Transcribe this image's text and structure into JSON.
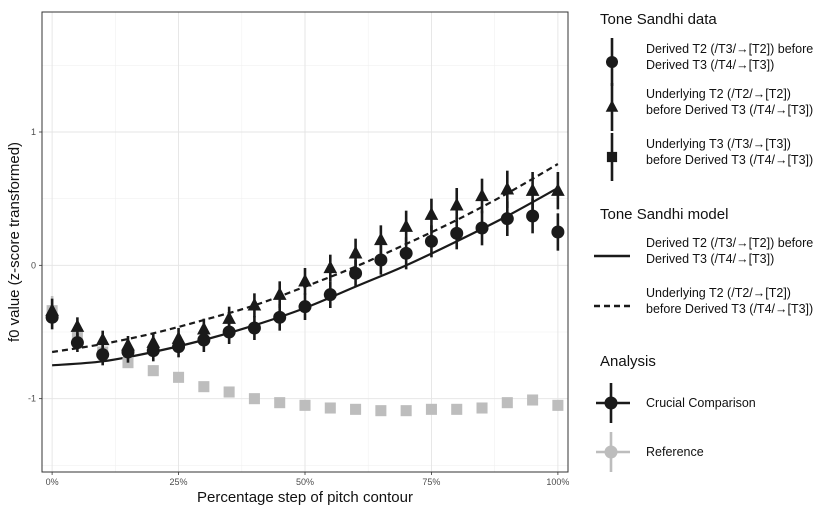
{
  "chart_data": {
    "type": "scatter",
    "xlabel": "Percentage step of pitch contour",
    "ylabel": "f0 value (z-score transformed)",
    "xlim": [
      -2,
      102
    ],
    "ylim": [
      -1.55,
      1.9
    ],
    "x_ticks": [
      0,
      25,
      50,
      75,
      100
    ],
    "x_tick_labels": [
      "0%",
      "25%",
      "50%",
      "75%",
      "100%"
    ],
    "y_ticks": [
      -1,
      0,
      1
    ],
    "y_tick_labels": [
      "-1",
      "0",
      "1"
    ],
    "grid": true,
    "x": [
      0,
      5,
      10,
      15,
      20,
      25,
      30,
      35,
      40,
      45,
      50,
      55,
      60,
      65,
      70,
      75,
      80,
      85,
      90,
      95,
      100
    ],
    "series": [
      {
        "name": "Derived T2 (/T3/→[T2]) before Derived T3 (/T4/→[T3])",
        "marker": "circle",
        "color": "#1a1a1a",
        "values": [
          -0.39,
          -0.58,
          -0.67,
          -0.65,
          -0.64,
          -0.61,
          -0.56,
          -0.5,
          -0.47,
          -0.39,
          -0.31,
          -0.22,
          -0.06,
          0.04,
          0.09,
          0.18,
          0.24,
          0.28,
          0.35,
          0.37,
          0.25
        ],
        "errors": [
          0.09,
          0.07,
          0.08,
          0.08,
          0.08,
          0.08,
          0.09,
          0.09,
          0.09,
          0.1,
          0.1,
          0.1,
          0.1,
          0.11,
          0.12,
          0.12,
          0.12,
          0.13,
          0.13,
          0.13,
          0.14
        ]
      },
      {
        "name": "Underlying T2 (/T2/→[T2]) before Derived T3 (/T4/→[T3])",
        "marker": "triangle",
        "color": "#1a1a1a",
        "values": [
          -0.34,
          -0.46,
          -0.56,
          -0.6,
          -0.58,
          -0.55,
          -0.48,
          -0.4,
          -0.3,
          -0.22,
          -0.12,
          -0.02,
          0.09,
          0.19,
          0.29,
          0.38,
          0.45,
          0.52,
          0.57,
          0.56,
          0.56
        ],
        "errors": [
          0.09,
          0.07,
          0.07,
          0.07,
          0.07,
          0.08,
          0.08,
          0.09,
          0.09,
          0.1,
          0.1,
          0.1,
          0.11,
          0.11,
          0.12,
          0.12,
          0.13,
          0.13,
          0.14,
          0.14,
          0.14
        ]
      },
      {
        "name": "Underlying T3 (/T3/→[T3]) before Derived T3 (/T4/→[T3])",
        "marker": "square",
        "color": "#bdbdbd",
        "values": [
          -0.34,
          -0.52,
          -0.65,
          -0.73,
          -0.79,
          -0.84,
          -0.91,
          -0.95,
          -1.0,
          -1.03,
          -1.05,
          -1.07,
          -1.08,
          -1.09,
          -1.09,
          -1.08,
          -1.08,
          -1.07,
          -1.03,
          -1.01,
          -1.05
        ],
        "errors": [
          0.11,
          0.05,
          0.04,
          0.04,
          0.04,
          0.03,
          0.03,
          0.03,
          0.03,
          0.03,
          0.03,
          0.03,
          0.03,
          0.03,
          0.03,
          0.03,
          0.03,
          0.03,
          0.03,
          0.03,
          0.04
        ]
      }
    ],
    "model_lines": [
      {
        "name": "Derived T2 (/T3/→[T2]) before Derived T3 (/T4/→[T3])",
        "style": "solid",
        "x": [
          0,
          10,
          20,
          30,
          40,
          50,
          60,
          70,
          80,
          90,
          100
        ],
        "values": [
          -0.75,
          -0.72,
          -0.65,
          -0.56,
          -0.45,
          -0.32,
          -0.16,
          0.0,
          0.18,
          0.37,
          0.58
        ]
      },
      {
        "name": "Underlying T2 (/T2/→[T2]) before Derived T3 (/T4/→[T3])",
        "style": "dashed",
        "x": [
          0,
          10,
          20,
          30,
          40,
          50,
          60,
          70,
          80,
          90,
          100
        ],
        "values": [
          -0.65,
          -0.59,
          -0.51,
          -0.41,
          -0.3,
          -0.16,
          -0.01,
          0.16,
          0.34,
          0.54,
          0.76
        ]
      }
    ],
    "legend": {
      "placement": "right",
      "groups": [
        {
          "title": "Tone Sandhi data",
          "entries": [
            {
              "marker": "circle",
              "lines": [
                "Derived T2 (/T3/→[T2]) before",
                "Derived T3 (/T4/→[T3])"
              ]
            },
            {
              "marker": "triangle",
              "lines": [
                "Underlying T2 (/T2/→[T2])",
                "before Derived T3 (/T4/→[T3])"
              ]
            },
            {
              "marker": "square",
              "lines": [
                "Underlying T3 (/T3/→[T3])",
                "before Derived T3 (/T4/→[T3])"
              ]
            }
          ]
        },
        {
          "title": "Tone Sandhi model",
          "entries": [
            {
              "style": "solid",
              "lines": [
                "Derived T2 (/T3/→[T2]) before",
                "Derived T3 (/T4/→[T3])"
              ]
            },
            {
              "style": "dashed",
              "lines": [
                "Underlying T2 (/T2/→[T2])",
                "before Derived T3 (/T4/→[T3])"
              ]
            }
          ]
        },
        {
          "title": "Analysis",
          "entries": [
            {
              "color": "#1a1a1a",
              "lines": [
                "Crucial Comparison"
              ]
            },
            {
              "color": "#bdbdbd",
              "lines": [
                "Reference"
              ]
            }
          ]
        }
      ]
    }
  }
}
